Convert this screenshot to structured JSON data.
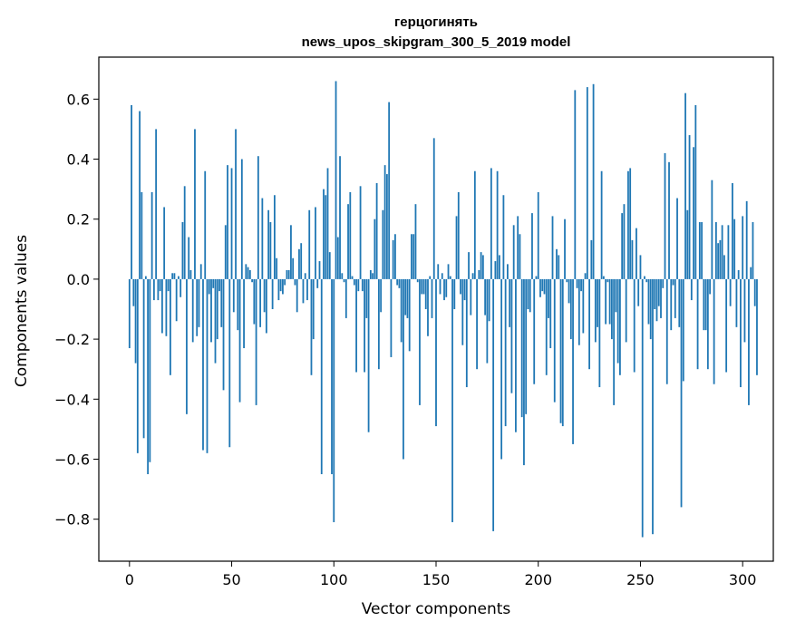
{
  "chart_data": {
    "type": "bar",
    "title": "герцогинять",
    "subtitle": "news_upos_skipgram_300_5_2019 model",
    "xlabel": "Vector components",
    "ylabel": "Components values",
    "xlim": [
      -15,
      315
    ],
    "ylim": [
      -0.94,
      0.74
    ],
    "xticks": [
      0,
      50,
      100,
      150,
      200,
      250,
      300
    ],
    "yticks": [
      -0.8,
      -0.6,
      -0.4,
      -0.2,
      0.0,
      0.2,
      0.4,
      0.6
    ],
    "ytick_labels": [
      "−0.8",
      "−0.6",
      "−0.4",
      "−0.2",
      "0.0",
      "0.2",
      "0.4",
      "0.6"
    ],
    "grid": false,
    "bar_color": "#1f77b4",
    "x_start": 0,
    "values": [
      -0.23,
      0.58,
      -0.09,
      -0.28,
      -0.58,
      0.56,
      0.29,
      -0.53,
      0.01,
      -0.65,
      -0.61,
      0.29,
      -0.07,
      0.5,
      -0.07,
      -0.04,
      -0.18,
      0.24,
      -0.19,
      -0.04,
      -0.32,
      0.02,
      0.02,
      -0.14,
      0.01,
      -0.06,
      0.19,
      0.31,
      -0.45,
      0.14,
      0.03,
      -0.21,
      0.5,
      -0.19,
      -0.16,
      0.05,
      -0.57,
      0.36,
      -0.58,
      -0.05,
      -0.21,
      -0.03,
      -0.28,
      -0.2,
      -0.04,
      -0.16,
      -0.37,
      0.18,
      0.38,
      -0.56,
      0.37,
      -0.11,
      0.5,
      -0.17,
      -0.41,
      0.4,
      -0.23,
      0.05,
      0.04,
      0.03,
      -0.01,
      -0.15,
      -0.42,
      0.41,
      -0.16,
      0.27,
      -0.11,
      -0.18,
      0.23,
      0.19,
      -0.1,
      0.28,
      0.07,
      -0.07,
      -0.04,
      -0.05,
      -0.02,
      0.03,
      0.03,
      0.18,
      0.07,
      -0.02,
      -0.11,
      0.1,
      0.12,
      -0.08,
      0.02,
      -0.07,
      0.23,
      -0.32,
      -0.2,
      0.24,
      -0.03,
      0.06,
      -0.65,
      0.3,
      0.28,
      0.37,
      0.09,
      -0.65,
      -0.81,
      0.66,
      0.14,
      0.41,
      0.02,
      -0.01,
      -0.13,
      0.25,
      0.29,
      0.01,
      -0.02,
      -0.31,
      -0.04,
      0.31,
      -0.04,
      -0.31,
      -0.13,
      -0.51,
      0.03,
      0.02,
      0.2,
      0.32,
      -0.3,
      -0.11,
      0.23,
      0.38,
      0.35,
      0.59,
      -0.26,
      0.13,
      0.15,
      -0.02,
      -0.03,
      -0.21,
      -0.6,
      -0.12,
      -0.13,
      -0.24,
      0.15,
      0.15,
      0.25,
      -0.01,
      -0.42,
      -0.05,
      -0.05,
      -0.1,
      -0.19,
      0.01,
      -0.13,
      0.47,
      -0.49,
      0.05,
      -0.05,
      0.02,
      -0.07,
      -0.06,
      0.05,
      0.01,
      -0.81,
      -0.1,
      0.21,
      0.29,
      -0.05,
      -0.22,
      -0.07,
      -0.36,
      0.09,
      -0.12,
      0.02,
      0.36,
      -0.3,
      0.03,
      0.09,
      0.08,
      -0.12,
      -0.28,
      -0.14,
      0.37,
      -0.84,
      0.06,
      0.36,
      0.08,
      -0.6,
      0.28,
      -0.49,
      0.05,
      -0.16,
      -0.38,
      0.18,
      -0.51,
      0.21,
      0.15,
      -0.46,
      -0.62,
      -0.45,
      -0.1,
      -0.11,
      0.22,
      -0.35,
      0.01,
      0.29,
      -0.06,
      -0.04,
      -0.05,
      -0.32,
      -0.13,
      -0.23,
      0.21,
      -0.41,
      0.1,
      0.08,
      -0.48,
      -0.49,
      0.2,
      -0.01,
      -0.08,
      -0.2,
      -0.55,
      0.63,
      -0.03,
      -0.22,
      -0.04,
      -0.18,
      0.02,
      0.64,
      -0.3,
      0.13,
      0.65,
      -0.21,
      -0.16,
      -0.36,
      0.36,
      0.01,
      -0.15,
      -0.01,
      -0.15,
      -0.2,
      -0.42,
      -0.11,
      -0.28,
      -0.32,
      0.22,
      0.25,
      -0.21,
      0.36,
      0.37,
      0.13,
      -0.31,
      0.17,
      -0.09,
      0.08,
      -0.86,
      0.01,
      -0.01,
      -0.15,
      -0.2,
      -0.85,
      -0.1,
      -0.14,
      -0.09,
      -0.13,
      -0.03,
      0.42,
      -0.35,
      0.39,
      -0.17,
      -0.02,
      -0.13,
      0.27,
      -0.16,
      -0.76,
      -0.34,
      0.62,
      0.23,
      0.48,
      -0.07,
      0.44,
      0.58,
      -0.3,
      0.19,
      0.19,
      -0.17,
      -0.17,
      -0.3,
      -0.05,
      0.33,
      -0.35,
      0.19,
      0.12,
      0.13,
      0.18,
      0.08,
      -0.31,
      0.18,
      -0.09,
      0.32,
      0.2,
      -0.16,
      0.03,
      -0.36,
      0.21,
      -0.21,
      0.26,
      -0.42,
      0.04,
      0.19,
      -0.09,
      -0.32
    ]
  }
}
